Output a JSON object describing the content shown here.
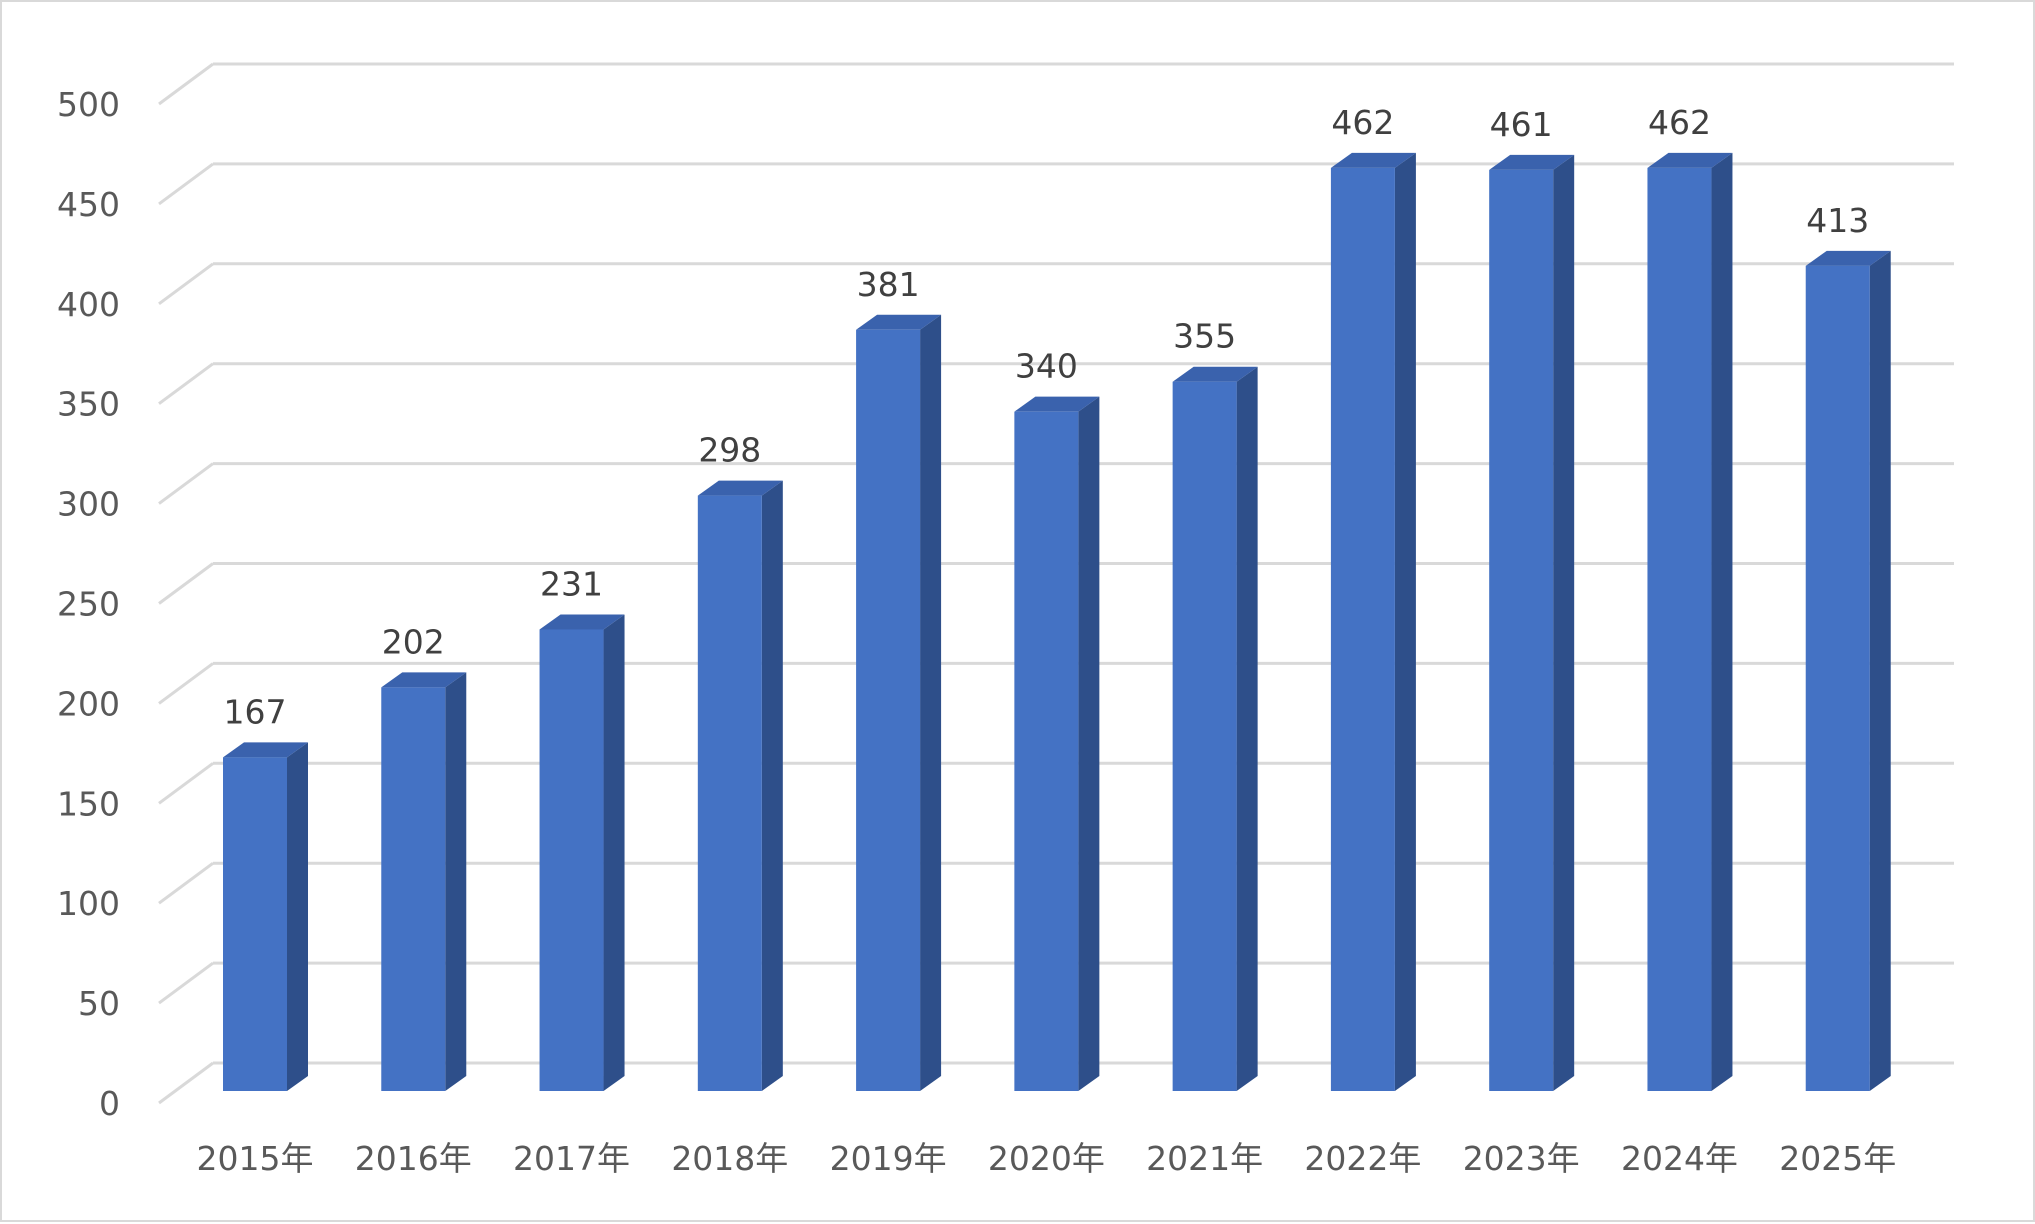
{
  "chart_data": {
    "type": "bar",
    "style": "3d-column",
    "title": "",
    "xlabel": "",
    "ylabel": "",
    "ylim": [
      0,
      500
    ],
    "yticks": [
      0,
      50,
      100,
      150,
      200,
      250,
      300,
      350,
      400,
      450,
      500
    ],
    "grid": true,
    "legend": "none",
    "categories": [
      "2015年",
      "2016年",
      "2017年",
      "2018年",
      "2019年",
      "2020年",
      "2021年",
      "2022年",
      "2023年",
      "2024年",
      "2025年"
    ],
    "values": [
      167,
      202,
      231,
      298,
      381,
      340,
      355,
      462,
      461,
      462,
      413
    ],
    "colors": {
      "bar_front": "#4472c4",
      "bar_side": "#2e4f8a",
      "bar_top": "#3a62ad",
      "grid": "#d9d9d9",
      "text": "#595959",
      "data_label": "#404040"
    }
  }
}
